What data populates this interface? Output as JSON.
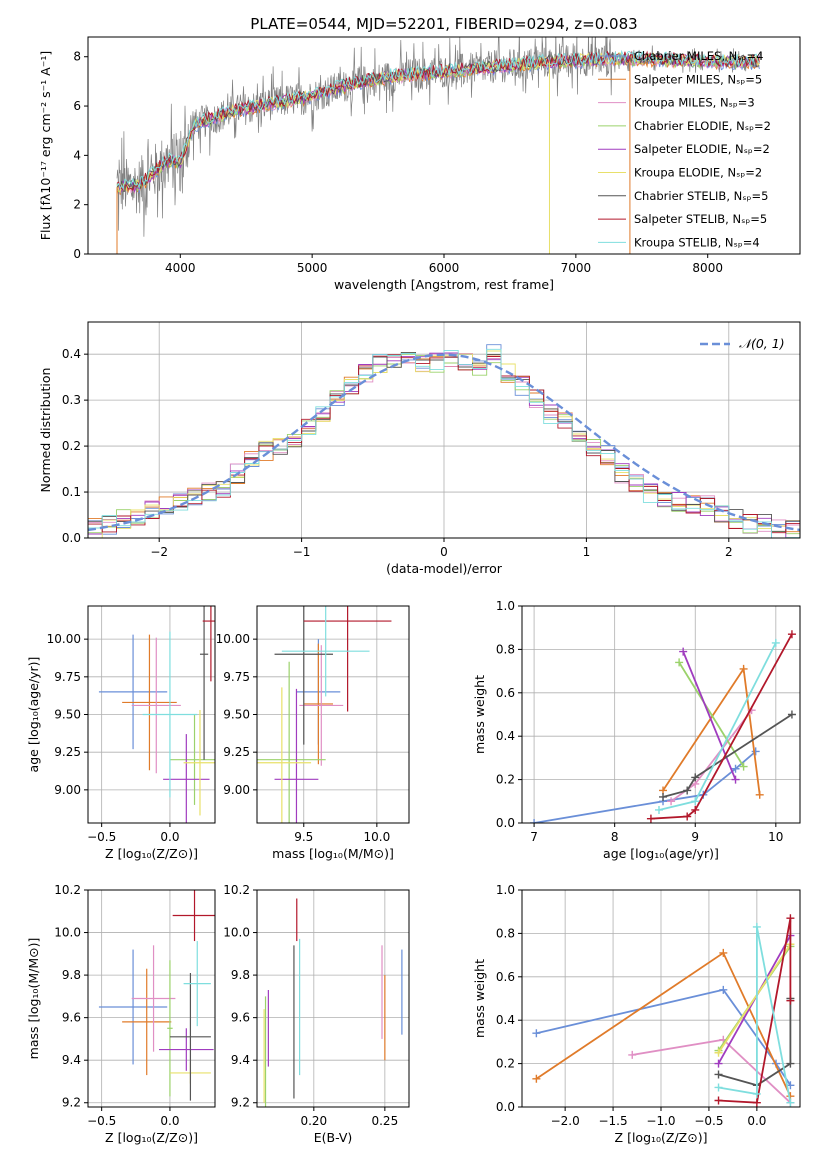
{
  "colors": {
    "chabrier_miles": "#6a8fd8",
    "salpeter_miles": "#e07b2a",
    "kroupa_miles": "#e08fc4",
    "chabrier_elodie": "#9bd26b",
    "salpeter_elodie": "#a03cbf",
    "kroupa_elodie": "#e8e06a",
    "chabrier_stelib": "#555555",
    "salpeter_stelib": "#b2182b",
    "kroupa_stelib": "#7fdede",
    "normal_curve": "#6a8fd8",
    "data_spectrum": "#808080"
  },
  "chart_data": [
    {
      "id": "spectrum",
      "type": "line",
      "title": "PLATE=0544, MJD=52201, FIBERID=0294, z=0.083",
      "xlabel": "wavelength [Angstrom, rest frame]",
      "ylabel": "Flux [fλ10⁻¹⁷ erg cm⁻² s⁻¹ A⁻¹]",
      "xlim": [
        3300,
        8700
      ],
      "ylim": [
        0,
        8.8
      ],
      "xticks": [
        4000,
        5000,
        6000,
        7000,
        8000
      ],
      "yticks": [
        0,
        2,
        4,
        6,
        8
      ],
      "grid": false,
      "legend": [
        {
          "name": "Chabrier MILES, Nₛₚ=4",
          "color": "#6a8fd8"
        },
        {
          "name": "Salpeter MILES, Nₛₚ=5",
          "color": "#e07b2a"
        },
        {
          "name": "Kroupa MILES, Nₛₚ=3",
          "color": "#e08fc4"
        },
        {
          "name": "Chabrier ELODIE, Nₛₚ=2",
          "color": "#9bd26b"
        },
        {
          "name": "Salpeter ELODIE, Nₛₚ=2",
          "color": "#a03cbf"
        },
        {
          "name": "Kroupa ELODIE, Nₛₚ=2",
          "color": "#e8e06a"
        },
        {
          "name": "Chabrier STELIB, Nₛₚ=5",
          "color": "#555555"
        },
        {
          "name": "Salpeter STELIB, Nₛₚ=5",
          "color": "#b2182b"
        },
        {
          "name": "Kroupa STELIB, Nₛₚ=4",
          "color": "#7fdede"
        }
      ],
      "legend_position": "right",
      "continuum_x": [
        3520,
        3700,
        3900,
        4000,
        4100,
        4400,
        4700,
        5000,
        5300,
        5600,
        6000,
        6400,
        6800,
        7200,
        7600,
        8000,
        8400
      ],
      "continuum_y": [
        2.7,
        2.8,
        3.8,
        3.7,
        5.2,
        5.8,
        6.1,
        6.4,
        6.9,
        7.2,
        7.4,
        7.6,
        7.8,
        7.9,
        7.9,
        7.8,
        7.8
      ],
      "data_noise_amplitude": 1.2
    },
    {
      "id": "residuals",
      "type": "line",
      "xlabel": "(data-model)/error",
      "ylabel": "Normed distribution",
      "xlim": [
        -2.5,
        2.5
      ],
      "ylim": [
        0,
        0.47
      ],
      "xticks": [
        -2,
        -1,
        0,
        1,
        2
      ],
      "yticks": [
        0.0,
        0.1,
        0.2,
        0.3,
        0.4
      ],
      "grid": true,
      "legend": [
        {
          "name": "𝒩(0, 1)",
          "color": "#6a8fd8"
        }
      ],
      "legend_position": "top-right",
      "bin_edges_start": -2.5,
      "bin_width": 0.1,
      "histogram_mean": [
        0.02,
        0.03,
        0.04,
        0.05,
        0.06,
        0.07,
        0.08,
        0.09,
        0.1,
        0.11,
        0.14,
        0.17,
        0.19,
        0.2,
        0.21,
        0.24,
        0.27,
        0.3,
        0.33,
        0.36,
        0.38,
        0.39,
        0.39,
        0.38,
        0.38,
        0.39,
        0.38,
        0.37,
        0.4,
        0.36,
        0.33,
        0.3,
        0.27,
        0.26,
        0.22,
        0.2,
        0.18,
        0.14,
        0.12,
        0.1,
        0.09,
        0.08,
        0.07,
        0.07,
        0.05,
        0.04,
        0.03,
        0.03,
        0.02,
        0.02
      ]
    },
    {
      "id": "age_vs_Z",
      "type": "scatter",
      "xlabel": "Z [log₁₀(Z/Z⊙)]",
      "ylabel": "age  [log₁₀(age/yr)]",
      "xlim": [
        -0.6,
        0.33
      ],
      "ylim": [
        8.78,
        10.22
      ],
      "xticks": [
        -0.5,
        0.0
      ],
      "yticks": [
        9.0,
        9.25,
        9.5,
        9.75,
        10.0
      ],
      "grid": true,
      "points": [
        {
          "color": "#6a8fd8",
          "x": -0.27,
          "xerr": 0.25,
          "y": 9.65,
          "yerr": 0.38
        },
        {
          "color": "#e07b2a",
          "x": -0.15,
          "xerr": 0.2,
          "y": 9.58,
          "yerr": 0.45
        },
        {
          "color": "#e08fc4",
          "x": -0.1,
          "xerr": 0.18,
          "y": 9.56,
          "yerr": 0.45
        },
        {
          "color": "#9bd26b",
          "x": 0.18,
          "xerr": 0.18,
          "y": 9.2,
          "yerr": 0.3
        },
        {
          "color": "#a03cbf",
          "x": 0.12,
          "xerr": 0.17,
          "y": 9.07,
          "yerr": 0.3
        },
        {
          "color": "#e8e06a",
          "x": 0.22,
          "xerr": 0.12,
          "y": 9.18,
          "yerr": 0.35
        },
        {
          "color": "#555555",
          "x": 0.25,
          "xerr": 0.03,
          "y": 9.9,
          "yerr": 0.7
        },
        {
          "color": "#b2182b",
          "x": 0.3,
          "xerr": 0.06,
          "y": 10.12,
          "yerr": 0.4
        },
        {
          "color": "#7fdede",
          "x": 0.0,
          "xerr": 0.2,
          "y": 9.5,
          "yerr": 0.55
        }
      ]
    },
    {
      "id": "age_vs_mass",
      "type": "scatter",
      "xlabel": "mass [log₁₀(M/M⊙)]",
      "ylabel": "",
      "xlim": [
        9.18,
        10.22
      ],
      "ylim": [
        8.78,
        10.22
      ],
      "xticks": [
        9.5,
        10.0
      ],
      "yticks": [
        9.0,
        9.25,
        9.5,
        9.75,
        10.0
      ],
      "grid": true,
      "points": [
        {
          "color": "#6a8fd8",
          "x": 9.6,
          "xerr": 0.15,
          "y": 9.65,
          "yerr": 0.35
        },
        {
          "color": "#e07b2a",
          "x": 9.6,
          "xerr": 0.1,
          "y": 9.57,
          "yerr": 0.4
        },
        {
          "color": "#e08fc4",
          "x": 9.62,
          "xerr": 0.15,
          "y": 9.56,
          "yerr": 0.4
        },
        {
          "color": "#9bd26b",
          "x": 9.4,
          "xerr": 0.25,
          "y": 9.2,
          "yerr": 0.65
        },
        {
          "color": "#a03cbf",
          "x": 9.45,
          "xerr": 0.15,
          "y": 9.07,
          "yerr": 0.6
        },
        {
          "color": "#e8e06a",
          "x": 9.35,
          "xerr": 0.2,
          "y": 9.18,
          "yerr": 0.5
        },
        {
          "color": "#555555",
          "x": 9.5,
          "xerr": 0.2,
          "y": 9.9,
          "yerr": 0.6
        },
        {
          "color": "#b2182b",
          "x": 9.8,
          "xerr": 0.3,
          "y": 10.12,
          "yerr": 0.6
        },
        {
          "color": "#7fdede",
          "x": 9.65,
          "xerr": 0.3,
          "y": 9.92,
          "yerr": 0.3
        }
      ]
    },
    {
      "id": "massweight_vs_age",
      "type": "line",
      "xlabel": "age  [log₁₀(age/yr)]",
      "ylabel": "mass weight",
      "xlim": [
        6.85,
        10.3
      ],
      "ylim": [
        0,
        1.0
      ],
      "xticks": [
        7,
        8,
        9,
        10
      ],
      "yticks": [
        0.0,
        0.2,
        0.4,
        0.6,
        0.8,
        1.0
      ],
      "grid": true,
      "series": [
        {
          "color": "#6a8fd8",
          "x": [
            7.0,
            8.6,
            9.1,
            9.5,
            9.75
          ],
          "y": [
            0.0,
            0.1,
            0.13,
            0.25,
            0.33
          ]
        },
        {
          "color": "#e07b2a",
          "x": [
            8.6,
            9.6,
            9.8
          ],
          "y": [
            0.15,
            0.71,
            0.13
          ]
        },
        {
          "color": "#e08fc4",
          "x": [
            8.7,
            9.0,
            9.7
          ],
          "y": [
            0.1,
            0.18,
            0.52
          ]
        },
        {
          "color": "#9bd26b",
          "x": [
            8.8,
            9.6
          ],
          "y": [
            0.74,
            0.26
          ]
        },
        {
          "color": "#a03cbf",
          "x": [
            8.85,
            9.5
          ],
          "y": [
            0.79,
            0.2
          ]
        },
        {
          "color": "#555555",
          "x": [
            8.6,
            8.9,
            9.0,
            10.2
          ],
          "y": [
            0.12,
            0.15,
            0.21,
            0.5
          ]
        },
        {
          "color": "#b2182b",
          "x": [
            8.45,
            8.9,
            9.0,
            10.2
          ],
          "y": [
            0.02,
            0.03,
            0.06,
            0.87
          ]
        },
        {
          "color": "#7fdede",
          "x": [
            8.55,
            9.0,
            10.0
          ],
          "y": [
            0.06,
            0.1,
            0.83
          ]
        }
      ]
    },
    {
      "id": "mass_vs_Z",
      "type": "scatter",
      "xlabel": "Z [log₁₀(Z/Z⊙)]",
      "ylabel": "mass [log₁₀(M/M⊙)]",
      "xlim": [
        -0.6,
        0.33
      ],
      "ylim": [
        9.18,
        10.2
      ],
      "xticks": [
        -0.5,
        0.0
      ],
      "yticks": [
        9.2,
        9.4,
        9.6,
        9.8,
        10.0,
        10.2
      ],
      "grid": true,
      "points": [
        {
          "color": "#6a8fd8",
          "x": -0.27,
          "xerr": 0.25,
          "y": 9.65,
          "yerr": 0.27
        },
        {
          "color": "#e07b2a",
          "x": -0.17,
          "xerr": 0.18,
          "y": 9.58,
          "yerr": 0.25
        },
        {
          "color": "#e08fc4",
          "x": -0.12,
          "xerr": 0.16,
          "y": 9.69,
          "yerr": 0.25
        },
        {
          "color": "#9bd26b",
          "x": 0.0,
          "xerr": 0.02,
          "y": 9.55,
          "yerr": 0.32
        },
        {
          "color": "#a03cbf",
          "x": 0.12,
          "xerr": 0.2,
          "y": 9.45,
          "yerr": 0.1
        },
        {
          "color": "#e8e06a",
          "x": 0.15,
          "xerr": 0.15,
          "y": 9.34,
          "yerr": 0.05
        },
        {
          "color": "#555555",
          "x": 0.15,
          "xerr": 0.15,
          "y": 9.51,
          "yerr": 0.3
        },
        {
          "color": "#b2182b",
          "x": 0.18,
          "xerr": 0.16,
          "y": 10.08,
          "yerr": 0.12
        },
        {
          "color": "#7fdede",
          "x": 0.2,
          "xerr": 0.1,
          "y": 9.76,
          "yerr": 0.2
        }
      ]
    },
    {
      "id": "mass_vs_ebv",
      "type": "scatter",
      "xlabel": "E(B-V)",
      "ylabel": "",
      "xlim": [
        0.16,
        0.267
      ],
      "ylim": [
        9.18,
        10.2
      ],
      "xticks": [
        0.2,
        0.25
      ],
      "yticks": [
        9.2,
        9.4,
        9.6,
        9.8,
        10.0,
        10.2
      ],
      "grid": true,
      "points": [
        {
          "color": "#6a8fd8",
          "x": 0.262,
          "y": 9.72,
          "yerr": 0.2
        },
        {
          "color": "#e07b2a",
          "x": 0.25,
          "y": 9.6,
          "yerr": 0.2
        },
        {
          "color": "#e08fc4",
          "x": 0.248,
          "y": 9.72,
          "yerr": 0.22
        },
        {
          "color": "#9bd26b",
          "x": 0.166,
          "y": 9.4,
          "yerr": 0.3
        },
        {
          "color": "#a03cbf",
          "x": 0.168,
          "y": 9.55,
          "yerr": 0.18
        },
        {
          "color": "#e8e06a",
          "x": 0.165,
          "y": 9.42,
          "yerr": 0.22
        },
        {
          "color": "#555555",
          "x": 0.186,
          "y": 9.58,
          "yerr": 0.36
        },
        {
          "color": "#b2182b",
          "x": 0.188,
          "y": 10.06,
          "yerr": 0.1
        },
        {
          "color": "#7fdede",
          "x": 0.19,
          "y": 9.65,
          "yerr": 0.32
        }
      ]
    },
    {
      "id": "massweight_vs_Z",
      "type": "line",
      "xlabel": "Z [log₁₀(Z/Z⊙)]",
      "ylabel": "mass weight",
      "xlim": [
        -2.45,
        0.45
      ],
      "ylim": [
        0,
        1.0
      ],
      "xticks": [
        -2.0,
        -1.5,
        -1.0,
        -0.5,
        0.0
      ],
      "yticks": [
        0.0,
        0.2,
        0.4,
        0.6,
        0.8,
        1.0
      ],
      "grid": true,
      "series": [
        {
          "color": "#6a8fd8",
          "x": [
            -2.3,
            -0.35,
            0.2,
            0.35
          ],
          "y": [
            0.34,
            0.54,
            0.2,
            0.1
          ]
        },
        {
          "color": "#e07b2a",
          "x": [
            -2.3,
            -0.35,
            0.35
          ],
          "y": [
            0.13,
            0.71,
            0.05
          ]
        },
        {
          "color": "#e08fc4",
          "x": [
            -1.3,
            -0.35,
            0.35
          ],
          "y": [
            0.24,
            0.31,
            0.02
          ]
        },
        {
          "color": "#9bd26b",
          "x": [
            -0.4,
            0.35
          ],
          "y": [
            0.26,
            0.74
          ]
        },
        {
          "color": "#a03cbf",
          "x": [
            -0.4,
            0.35
          ],
          "y": [
            0.2,
            0.79
          ]
        },
        {
          "color": "#e8e06a",
          "x": [
            -0.4,
            0.35
          ],
          "y": [
            0.25,
            0.75
          ]
        },
        {
          "color": "#555555",
          "x": [
            -0.4,
            0.0,
            0.35,
            0.35
          ],
          "y": [
            0.15,
            0.1,
            0.2,
            0.5
          ]
        },
        {
          "color": "#b2182b",
          "x": [
            -0.4,
            0.0,
            0.35,
            0.35
          ],
          "y": [
            0.03,
            0.02,
            0.87,
            0.49
          ]
        },
        {
          "color": "#7fdede",
          "x": [
            -0.4,
            0.0,
            0.0,
            0.35
          ],
          "y": [
            0.09,
            0.06,
            0.83,
            0.02
          ]
        }
      ]
    }
  ]
}
